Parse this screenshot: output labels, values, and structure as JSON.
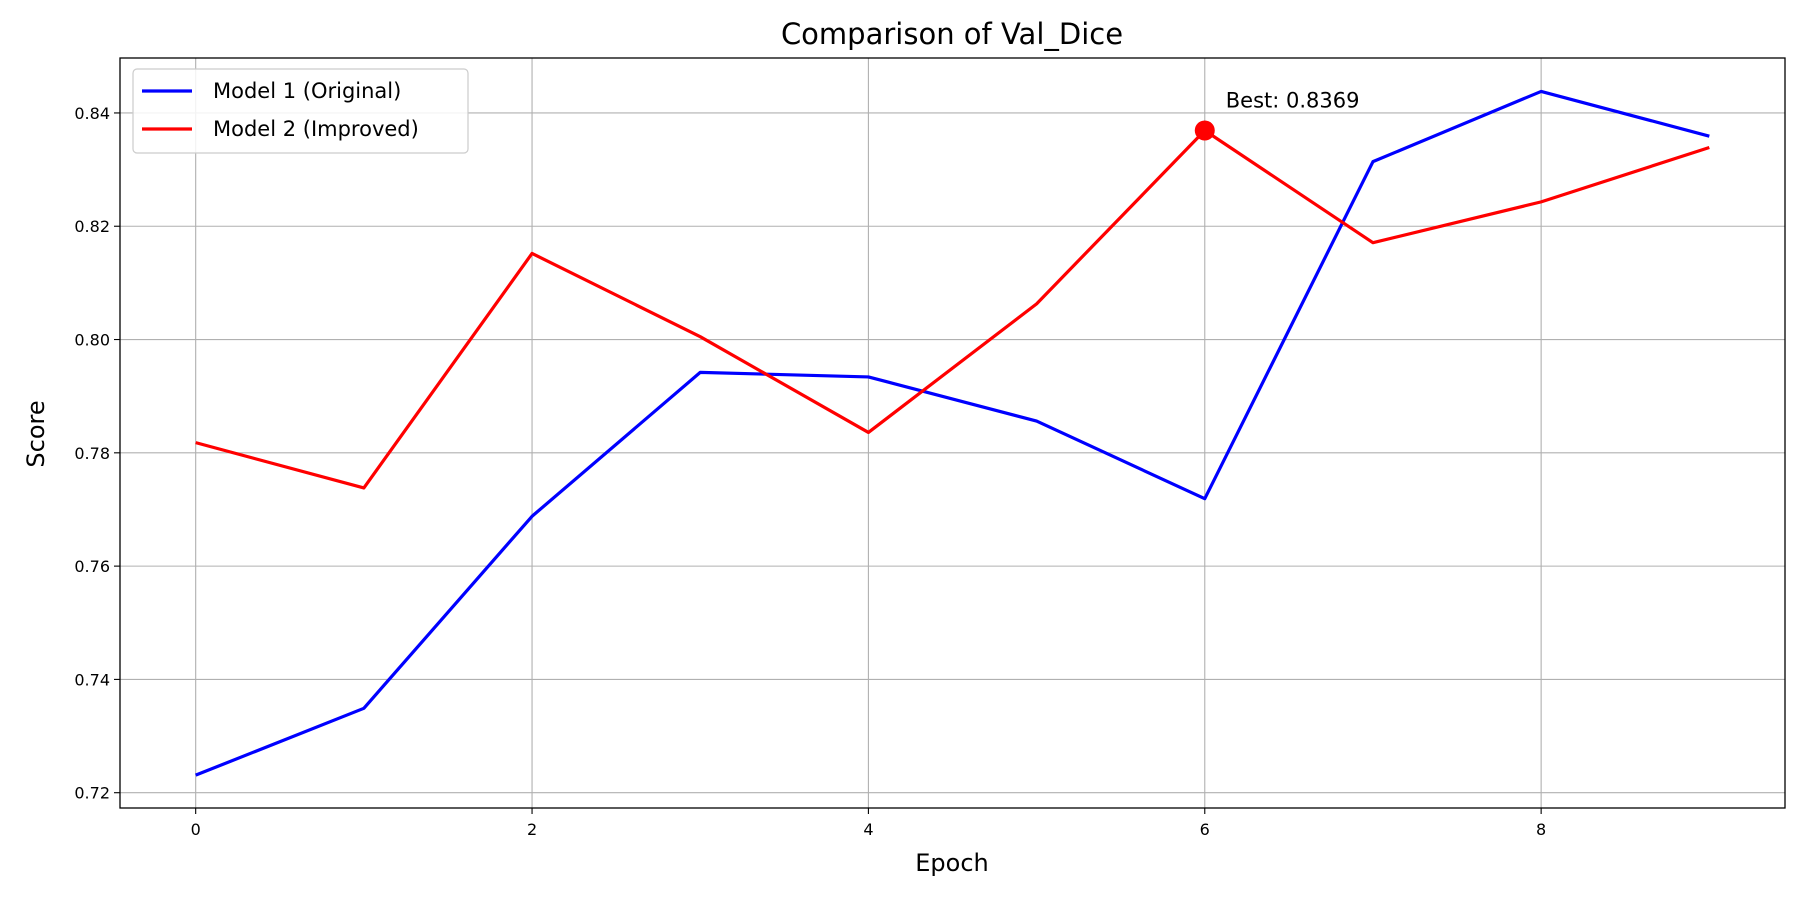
{
  "chart_data": {
    "type": "line",
    "title": "Comparison of Val_Dice",
    "xlabel": "Epoch",
    "ylabel": "Score",
    "x": [
      0,
      1,
      2,
      3,
      4,
      5,
      6,
      7,
      8,
      9
    ],
    "xlim": [
      -0.45,
      9.45
    ],
    "ylim": [
      0.7173,
      0.8497
    ],
    "xticks": [
      0,
      2,
      4,
      6,
      8
    ],
    "yticks": [
      0.72,
      0.74,
      0.76,
      0.78,
      0.8,
      0.82,
      0.84
    ],
    "ytick_labels": [
      "0.72",
      "0.74",
      "0.76",
      "0.78",
      "0.80",
      "0.82",
      "0.84"
    ],
    "grid": true,
    "legend_position": "top-left",
    "series": [
      {
        "name": "Model 1 (Original)",
        "color": "#0000ff",
        "values": [
          0.7231,
          0.7349,
          0.7688,
          0.7942,
          0.7934,
          0.7856,
          0.7719,
          0.8314,
          0.8438,
          0.8359
        ]
      },
      {
        "name": "Model 2 (Improved)",
        "color": "#ff0000",
        "values": [
          0.7818,
          0.7738,
          0.8152,
          0.8005,
          0.7836,
          0.8063,
          0.8369,
          0.8171,
          0.8243,
          0.8339
        ]
      }
    ],
    "annotations": [
      {
        "text": "Best: 0.8369",
        "x": 6,
        "y": 0.8369,
        "series": 1,
        "marker_color": "#ff0000"
      }
    ]
  }
}
